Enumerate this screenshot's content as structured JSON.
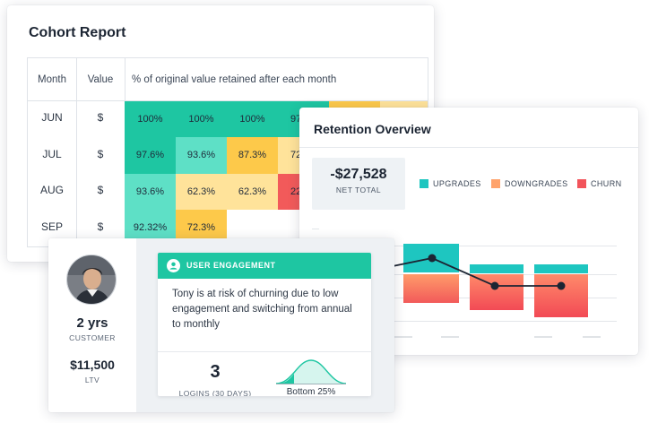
{
  "cohort": {
    "title": "Cohort Report",
    "headers": {
      "month": "Month",
      "value": "Value",
      "description": "% of original value retained after each month"
    },
    "rows": [
      {
        "month": "JUN",
        "value": "$",
        "cells": [
          "100%",
          "100%",
          "100%",
          "97.",
          "",
          ""
        ]
      },
      {
        "month": "JUL",
        "value": "$",
        "cells": [
          "97.6%",
          "93.6%",
          "87.3%",
          "72"
        ]
      },
      {
        "month": "AUG",
        "value": "$",
        "cells": [
          "93.6%",
          "62.3%",
          "62.3%",
          "22"
        ]
      },
      {
        "month": "SEP",
        "value": "$",
        "cells": [
          "92.32%",
          "72.3%"
        ]
      }
    ],
    "colors": {
      "high": "#1ec6a2",
      "mid_high": "#5ee0c6",
      "mid": "#ffe39a",
      "amber": "#fdc94a",
      "low": "#f25a5a"
    }
  },
  "retention": {
    "title": "Retention Overview",
    "net_total_value": "-$27,528",
    "net_total_label": "NET TOTAL",
    "legend": [
      {
        "label": "UPGRADES",
        "color": "#1ec6c0"
      },
      {
        "label": "DOWNGRADES",
        "color": "#ffa36b"
      },
      {
        "label": "CHURN",
        "color": "#f2545b"
      }
    ]
  },
  "customer": {
    "tenure": "2 yrs",
    "tenure_label": "CUSTOMER",
    "ltv": "$11,500",
    "ltv_label": "LTV",
    "engagement": {
      "title": "USER ENGAGEMENT",
      "message": "Tony is at risk of churning due to low engagement and switching from annual to monthly",
      "logins": "3",
      "logins_label": "LOGINS (30 DAYS)",
      "percentile": "Bottom 25%"
    }
  }
}
